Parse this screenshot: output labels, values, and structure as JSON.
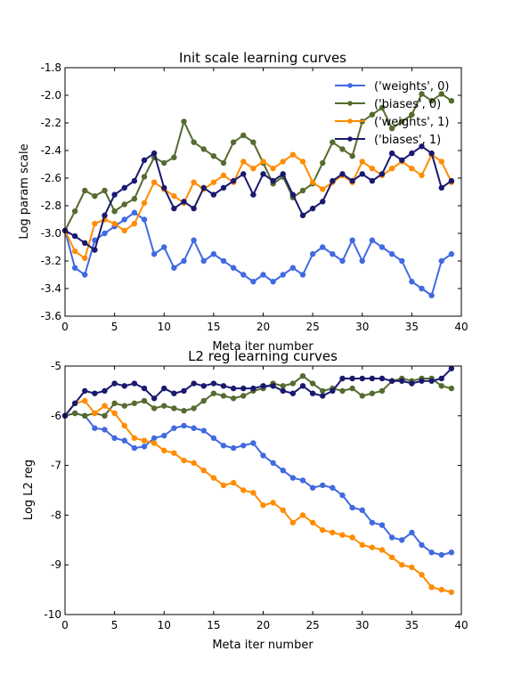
{
  "chart_data": [
    {
      "type": "line",
      "title": "Init scale learning curves",
      "xlabel": "Meta iter number",
      "ylabel": "Log param scale",
      "xlim": [
        0,
        40
      ],
      "ylim": [
        -3.6,
        -1.8
      ],
      "xticks": [
        0,
        5,
        10,
        15,
        20,
        25,
        30,
        35,
        40
      ],
      "xtick_labels": [
        "0",
        "5",
        "10",
        "15",
        "20",
        "25",
        "30",
        "35",
        "40"
      ],
      "yticks": [
        -3.6,
        -3.4,
        -3.2,
        -3.0,
        -2.8,
        -2.6,
        -2.4,
        -2.2,
        -2.0,
        -1.8
      ],
      "ytick_labels": [
        "-3.6",
        "-3.4",
        "-3.2",
        "-3.0",
        "-2.8",
        "-2.6",
        "-2.4",
        "-2.2",
        "-2.0",
        "-1.8"
      ],
      "grid": false,
      "legend_position": "top-right",
      "x": [
        0,
        1,
        2,
        3,
        4,
        5,
        6,
        7,
        8,
        9,
        10,
        11,
        12,
        13,
        14,
        15,
        16,
        17,
        18,
        19,
        20,
        21,
        22,
        23,
        24,
        25,
        26,
        27,
        28,
        29,
        30,
        31,
        32,
        33,
        34,
        35,
        36,
        37,
        38,
        39
      ],
      "series": [
        {
          "name": "('weights', 0)",
          "color": "#4169e1",
          "values": [
            -2.98,
            -3.25,
            -3.3,
            -3.05,
            -3.0,
            -2.95,
            -2.9,
            -2.85,
            -2.9,
            -3.15,
            -3.1,
            -3.25,
            -3.2,
            -3.05,
            -3.2,
            -3.15,
            -3.2,
            -3.25,
            -3.3,
            -3.35,
            -3.3,
            -3.35,
            -3.3,
            -3.25,
            -3.3,
            -3.15,
            -3.1,
            -3.15,
            -3.2,
            -3.05,
            -3.2,
            -3.05,
            -3.1,
            -3.15,
            -3.2,
            -3.35,
            -3.4,
            -3.45,
            -3.2,
            -3.15
          ]
        },
        {
          "name": "('biases', 0)",
          "color": "#556b2f",
          "values": [
            -2.98,
            -2.84,
            -2.69,
            -2.73,
            -2.69,
            -2.84,
            -2.79,
            -2.75,
            -2.59,
            -2.45,
            -2.49,
            -2.45,
            -2.19,
            -2.34,
            -2.39,
            -2.44,
            -2.49,
            -2.34,
            -2.29,
            -2.34,
            -2.49,
            -2.64,
            -2.59,
            -2.74,
            -2.69,
            -2.64,
            -2.49,
            -2.34,
            -2.39,
            -2.44,
            -2.19,
            -2.14,
            -2.09,
            -2.24,
            -2.19,
            -2.14,
            -1.99,
            -2.04,
            -1.99,
            -2.04
          ]
        },
        {
          "name": "('weights', 1)",
          "color": "#ff8c00",
          "values": [
            -2.98,
            -3.13,
            -3.18,
            -2.93,
            -2.9,
            -2.93,
            -2.98,
            -2.93,
            -2.78,
            -2.63,
            -2.68,
            -2.73,
            -2.78,
            -2.63,
            -2.68,
            -2.63,
            -2.58,
            -2.63,
            -2.48,
            -2.53,
            -2.48,
            -2.53,
            -2.48,
            -2.43,
            -2.48,
            -2.63,
            -2.68,
            -2.63,
            -2.58,
            -2.63,
            -2.48,
            -2.53,
            -2.58,
            -2.53,
            -2.48,
            -2.53,
            -2.58,
            -2.43,
            -2.48,
            -2.63
          ]
        },
        {
          "name": "('biases', 1)",
          "color": "#191970",
          "values": [
            -2.98,
            -3.02,
            -3.07,
            -3.12,
            -2.87,
            -2.72,
            -2.67,
            -2.62,
            -2.47,
            -2.42,
            -2.67,
            -2.82,
            -2.77,
            -2.82,
            -2.67,
            -2.72,
            -2.67,
            -2.62,
            -2.57,
            -2.72,
            -2.57,
            -2.62,
            -2.57,
            -2.72,
            -2.87,
            -2.82,
            -2.77,
            -2.62,
            -2.57,
            -2.62,
            -2.57,
            -2.62,
            -2.57,
            -2.42,
            -2.47,
            -2.42,
            -2.37,
            -2.42,
            -2.67,
            -2.62
          ]
        }
      ]
    },
    {
      "type": "line",
      "title": "L2 reg learning curves",
      "xlabel": "Meta iter number",
      "ylabel": "Log L2 reg",
      "xlim": [
        0,
        40
      ],
      "ylim": [
        -10,
        -5
      ],
      "xticks": [
        0,
        5,
        10,
        15,
        20,
        25,
        30,
        35,
        40
      ],
      "xtick_labels": [
        "0",
        "5",
        "10",
        "15",
        "20",
        "25",
        "30",
        "35",
        "40"
      ],
      "yticks": [
        -10,
        -9,
        -8,
        -7,
        -6,
        -5
      ],
      "ytick_labels": [
        "-10",
        "-9",
        "-8",
        "-7",
        "-6",
        "-5"
      ],
      "grid": false,
      "x": [
        0,
        1,
        2,
        3,
        4,
        5,
        6,
        7,
        8,
        9,
        10,
        11,
        12,
        13,
        14,
        15,
        16,
        17,
        18,
        19,
        20,
        21,
        22,
        23,
        24,
        25,
        26,
        27,
        28,
        29,
        30,
        31,
        32,
        33,
        34,
        35,
        36,
        37,
        38,
        39
      ],
      "series": [
        {
          "color": "#4169e1",
          "values": [
            -6.0,
            -5.95,
            -6.0,
            -6.25,
            -6.28,
            -6.45,
            -6.5,
            -6.65,
            -6.62,
            -6.45,
            -6.4,
            -6.25,
            -6.2,
            -6.25,
            -6.3,
            -6.45,
            -6.6,
            -6.65,
            -6.6,
            -6.55,
            -6.8,
            -6.95,
            -7.1,
            -7.25,
            -7.3,
            -7.45,
            -7.4,
            -7.45,
            -7.6,
            -7.85,
            -7.9,
            -8.15,
            -8.2,
            -8.45,
            -8.5,
            -8.35,
            -8.6,
            -8.75,
            -8.8,
            -8.75
          ]
        },
        {
          "color": "#556b2f",
          "values": [
            -6.0,
            -5.95,
            -6.0,
            -5.95,
            -6.0,
            -5.75,
            -5.8,
            -5.75,
            -5.7,
            -5.85,
            -5.8,
            -5.85,
            -5.9,
            -5.85,
            -5.7,
            -5.55,
            -5.6,
            -5.65,
            -5.6,
            -5.5,
            -5.45,
            -5.35,
            -5.4,
            -5.35,
            -5.2,
            -5.35,
            -5.5,
            -5.45,
            -5.5,
            -5.45,
            -5.6,
            -5.55,
            -5.5,
            -5.3,
            -5.25,
            -5.3,
            -5.25,
            -5.25,
            -5.4,
            -5.45
          ]
        },
        {
          "color": "#ff8c00",
          "values": [
            -6.0,
            -5.75,
            -5.7,
            -5.95,
            -5.8,
            -5.95,
            -6.2,
            -6.45,
            -6.5,
            -6.55,
            -6.7,
            -6.75,
            -6.9,
            -6.95,
            -7.1,
            -7.25,
            -7.4,
            -7.35,
            -7.5,
            -7.55,
            -7.8,
            -7.75,
            -7.9,
            -8.15,
            -8.0,
            -8.15,
            -8.3,
            -8.35,
            -8.4,
            -8.45,
            -8.6,
            -8.65,
            -8.7,
            -8.85,
            -9.0,
            -9.05,
            -9.2,
            -9.45,
            -9.5,
            -9.55
          ]
        },
        {
          "color": "#191970",
          "values": [
            -6.0,
            -5.75,
            -5.5,
            -5.55,
            -5.5,
            -5.35,
            -5.4,
            -5.35,
            -5.45,
            -5.65,
            -5.45,
            -5.55,
            -5.5,
            -5.35,
            -5.4,
            -5.35,
            -5.4,
            -5.45,
            -5.45,
            -5.45,
            -5.4,
            -5.4,
            -5.5,
            -5.55,
            -5.4,
            -5.55,
            -5.6,
            -5.5,
            -5.25,
            -5.25,
            -5.25,
            -5.25,
            -5.25,
            -5.3,
            -5.3,
            -5.35,
            -5.3,
            -5.3,
            -5.25,
            -5.05
          ]
        }
      ]
    }
  ]
}
